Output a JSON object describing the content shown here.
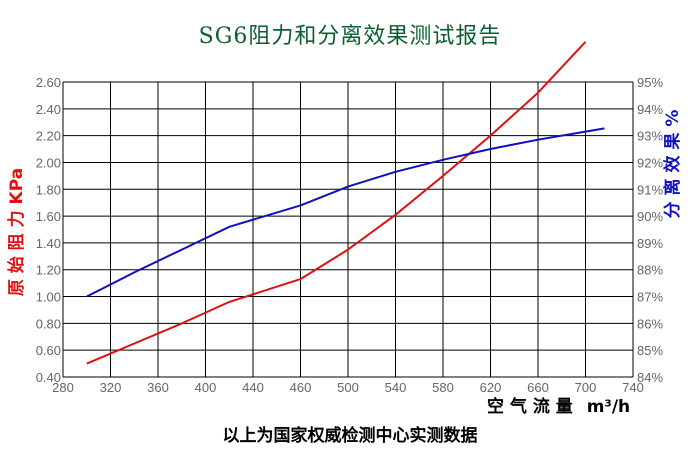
{
  "colors": {
    "title": "#0b5e2f",
    "pressure": "#e01010",
    "efficiency": "#1010c0",
    "grid": "#000000",
    "tick_text": "#666666"
  },
  "chart_data": {
    "type": "line",
    "title": "SG6阻力和分离效果测试报告",
    "xlabel": "空 气 流 量",
    "xunit": "m³/h",
    "ylabel_left": "原 始 阻 力 KPa",
    "ylabel_right": "分 离 效 果 %",
    "xlim": [
      280,
      740
    ],
    "ylim_left": [
      0.4,
      2.6
    ],
    "ylim_right": [
      84,
      95
    ],
    "grid": true,
    "x_ticks": [
      "280",
      "320",
      "360",
      "400",
      "440",
      "460",
      "500",
      "540",
      "580",
      "620",
      "660",
      "700",
      "740"
    ],
    "y_left_ticks": [
      "0.40",
      "0.60",
      "0.80",
      "1.00",
      "1.20",
      "1.40",
      "1.60",
      "1.80",
      "2.00",
      "2.20",
      "2.40",
      "2.60"
    ],
    "y_right_ticks": [
      "84%",
      "85%",
      "86%",
      "87%",
      "88%",
      "89%",
      "90%",
      "91%",
      "92%",
      "93%",
      "94%",
      "95%"
    ],
    "series": [
      {
        "axis": "left",
        "points": [
          [
            300,
            0.5
          ],
          [
            340,
            0.65
          ],
          [
            380,
            0.8
          ],
          [
            420,
            0.96
          ],
          [
            460,
            1.13
          ],
          [
            480,
            1.24
          ],
          [
            500,
            1.35
          ],
          [
            540,
            1.61
          ],
          [
            580,
            1.9
          ],
          [
            620,
            2.2
          ],
          [
            660,
            2.52
          ],
          [
            700,
            2.9
          ]
        ]
      },
      {
        "axis": "right",
        "points": [
          [
            300,
            87.0
          ],
          [
            340,
            87.9
          ],
          [
            380,
            88.75
          ],
          [
            420,
            89.6
          ],
          [
            460,
            90.4
          ],
          [
            500,
            91.1
          ],
          [
            540,
            91.65
          ],
          [
            580,
            92.1
          ],
          [
            620,
            92.5
          ],
          [
            660,
            92.85
          ],
          [
            700,
            93.15
          ],
          [
            716,
            93.27
          ]
        ]
      }
    ]
  },
  "footnote": "以上为国家权威检测中心实测数据"
}
